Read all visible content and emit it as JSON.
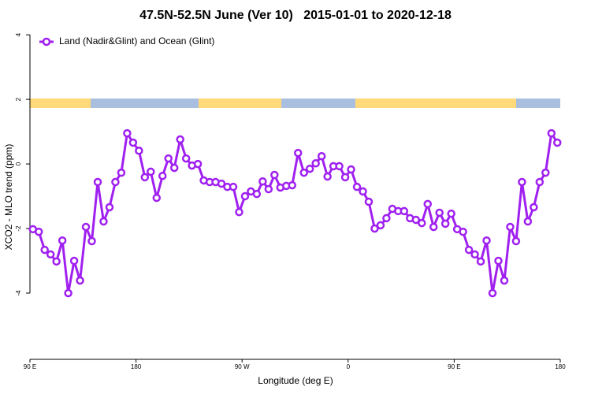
{
  "chart_data": {
    "type": "line",
    "title": "47.5N-52.5N June (Ver 10)   2015-01-01 to 2020-12-18",
    "xlabel": "Longitude (deg E)",
    "ylabel": "XCO2 - MLO trend (ppm)",
    "xlim": [
      90,
      540
    ],
    "ylim": [
      -6.05,
      4.15
    ],
    "xticks": [
      {
        "value": 90,
        "label": "90 E"
      },
      {
        "value": 180,
        "label": "180"
      },
      {
        "value": 270,
        "label": "90 W"
      },
      {
        "value": 360,
        "label": "0"
      },
      {
        "value": 450,
        "label": "90 E"
      },
      {
        "value": 540,
        "label": "180"
      }
    ],
    "yticks": [
      -4,
      -2,
      0,
      2,
      4
    ],
    "legend": "top-left",
    "x": [
      92.5,
      97.5,
      102.5,
      107.5,
      112.5,
      117.5,
      122.5,
      127.5,
      132.5,
      137.5,
      142.5,
      147.5,
      152.5,
      157.5,
      162.5,
      167.5,
      172.5,
      177.5,
      182.5,
      187.5,
      192.5,
      197.5,
      202.5,
      207.5,
      212.5,
      217.5,
      222.5,
      227.5,
      232.5,
      237.5,
      242.5,
      247.5,
      252.5,
      257.5,
      262.5,
      267.5,
      272.5,
      277.5,
      282.5,
      287.5,
      292.5,
      297.5,
      302.5,
      307.5,
      312.5,
      317.5,
      322.5,
      327.5,
      332.5,
      337.5,
      342.5,
      347.5,
      352.5,
      357.5,
      362.5,
      367.5,
      372.5,
      377.5,
      382.5,
      387.5,
      392.5,
      397.5,
      402.5,
      407.5,
      412.5,
      417.5,
      422.5,
      427.5,
      432.5,
      437.5,
      442.5,
      447.5,
      452.5,
      457.5,
      462.5,
      467.5,
      472.5,
      477.5,
      482.5,
      487.5,
      492.5,
      497.5,
      502.5,
      507.5,
      512.5,
      517.5,
      522.5,
      527.5,
      532.5,
      537.5
    ],
    "series": [
      {
        "name": "Land (Nadir&Glint) and Ocean (Glint)",
        "color": "#a020f0",
        "values": [
          -2.02,
          -2.1,
          -2.66,
          -2.8,
          -3.02,
          -2.37,
          -4.0,
          -3.0,
          -3.61,
          -1.95,
          -2.39,
          -0.56,
          -1.78,
          -1.34,
          -0.56,
          -0.27,
          0.95,
          0.66,
          0.41,
          -0.41,
          -0.24,
          -1.05,
          -0.37,
          0.17,
          -0.12,
          0.76,
          0.17,
          -0.05,
          0,
          -0.51,
          -0.56,
          -0.56,
          -0.61,
          -0.71,
          -0.71,
          -1.49,
          -1.0,
          -0.85,
          -0.93,
          -0.54,
          -0.78,
          -0.34,
          -0.73,
          -0.68,
          -0.66,
          0.34,
          -0.27,
          -0.15,
          0.02,
          0.24,
          -0.39,
          -0.07,
          -0.07,
          -0.41,
          -0.17,
          -0.71,
          -0.85,
          -1.17,
          -2.0,
          -1.9,
          -1.68,
          -1.39,
          -1.46,
          -1.46,
          -1.68,
          -1.73,
          -1.83,
          -1.24,
          -1.95,
          -1.51,
          -1.85,
          -1.54,
          -2.02,
          -2.1,
          -2.66,
          -2.8,
          -3.02,
          -2.37,
          -4.0,
          -3.0,
          -3.61,
          -1.95,
          -2.39,
          -0.56,
          -1.78,
          -1.34,
          -0.56,
          -0.27,
          0.95,
          0.66
        ]
      }
    ]
  }
}
